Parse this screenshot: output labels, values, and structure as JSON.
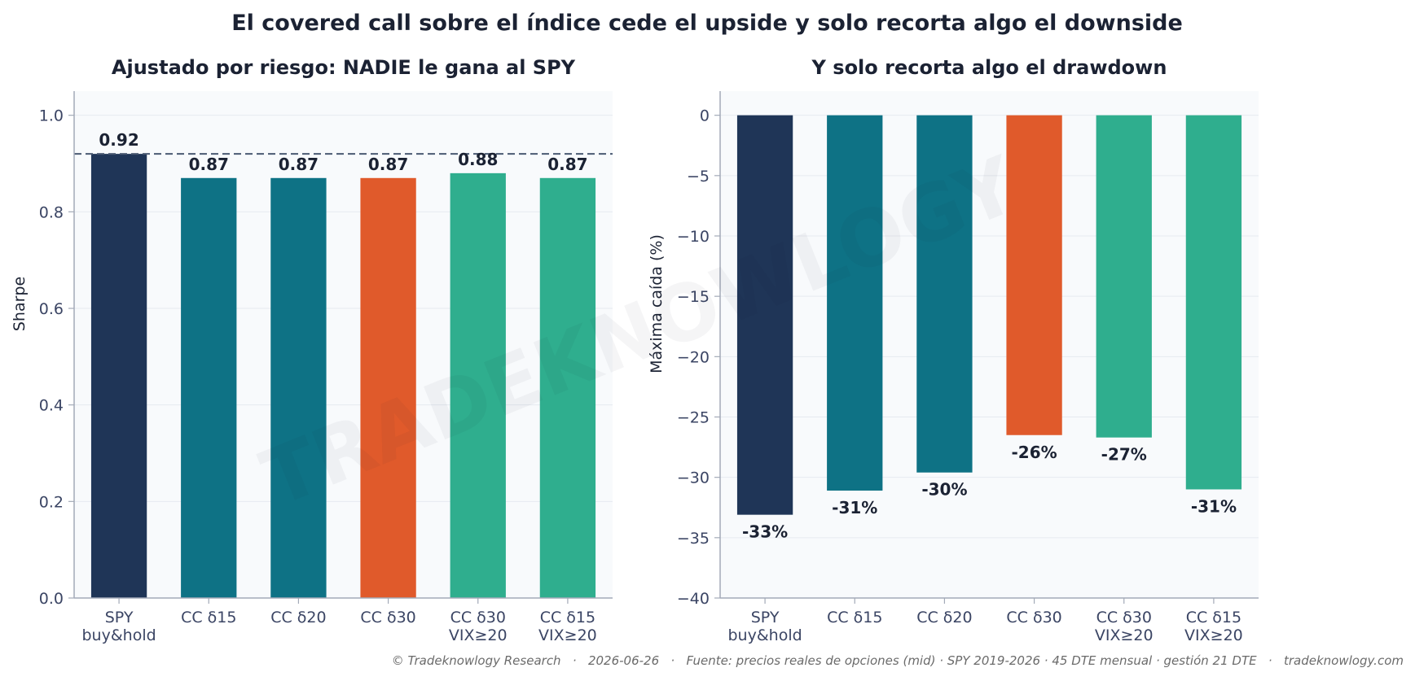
{
  "suptitle": "El covered call sobre el índice cede el upside y solo recorta algo el downside",
  "watermark": "TRADEKNOWLOGY",
  "footer": "© Tradeknowlogy Research   ·   2026-06-26   ·   Fuente: precios reales de opciones (mid) · SPY 2019-2026 · 45 DTE mensual · gestión 21 DTE   ·   tradeknowlogy.com",
  "colors": {
    "spy": "#1f3557",
    "teal": "#0e7285",
    "orange": "#e05a2b",
    "green": "#2fae8e",
    "panel_bg": "#f8fafc",
    "axis": "#a3aab8",
    "grid": "#e6eaf0",
    "text_dark": "#1b2233",
    "tick_text": "#3b4564",
    "ref_line": "#4b5a73",
    "footer_text": "#6b6b6b"
  },
  "chart_data": [
    {
      "type": "bar",
      "title": "Ajustado por riesgo: NADIE le gana al SPY",
      "xlabel": "",
      "ylabel": "Sharpe",
      "categories": [
        [
          "SPY",
          "buy&hold"
        ],
        [
          "CC δ15"
        ],
        [
          "CC δ20"
        ],
        [
          "CC δ30"
        ],
        [
          "CC δ30",
          "VIX≥20"
        ],
        [
          "CC δ15",
          "VIX≥20"
        ]
      ],
      "values": [
        0.92,
        0.87,
        0.87,
        0.87,
        0.88,
        0.87
      ],
      "labels": [
        "0.92",
        "0.87",
        "0.87",
        "0.87",
        "0.88",
        "0.87"
      ],
      "bar_colors": [
        "spy",
        "teal",
        "teal",
        "orange",
        "green",
        "green"
      ],
      "ylim": [
        0,
        1.05
      ],
      "yticks": [
        0.0,
        0.2,
        0.4,
        0.6,
        0.8,
        1.0
      ],
      "ytick_labels": [
        "0.0",
        "0.2",
        "0.4",
        "0.6",
        "0.8",
        "1.0"
      ],
      "reference_line": 0.92,
      "grid": true,
      "legend": "none"
    },
    {
      "type": "bar",
      "title": "Y solo recorta algo el drawdown",
      "xlabel": "",
      "ylabel": "Máxima caída (%)",
      "categories": [
        [
          "SPY",
          "buy&hold"
        ],
        [
          "CC δ15"
        ],
        [
          "CC δ20"
        ],
        [
          "CC δ30"
        ],
        [
          "CC δ30",
          "VIX≥20"
        ],
        [
          "CC δ15",
          "VIX≥20"
        ]
      ],
      "values": [
        -33.1,
        -31.1,
        -29.6,
        -26.5,
        -26.7,
        -31.0
      ],
      "labels": [
        "-33%",
        "-31%",
        "-30%",
        "-26%",
        "-27%",
        "-31%"
      ],
      "bar_colors": [
        "spy",
        "teal",
        "teal",
        "orange",
        "green",
        "green"
      ],
      "ylim": [
        -40,
        2
      ],
      "yticks": [
        0,
        -5,
        -10,
        -15,
        -20,
        -25,
        -30,
        -35,
        -40
      ],
      "ytick_labels": [
        "0",
        "−5",
        "−10",
        "−15",
        "−20",
        "−25",
        "−30",
        "−35",
        "−40"
      ],
      "grid": true,
      "legend": "none"
    }
  ]
}
